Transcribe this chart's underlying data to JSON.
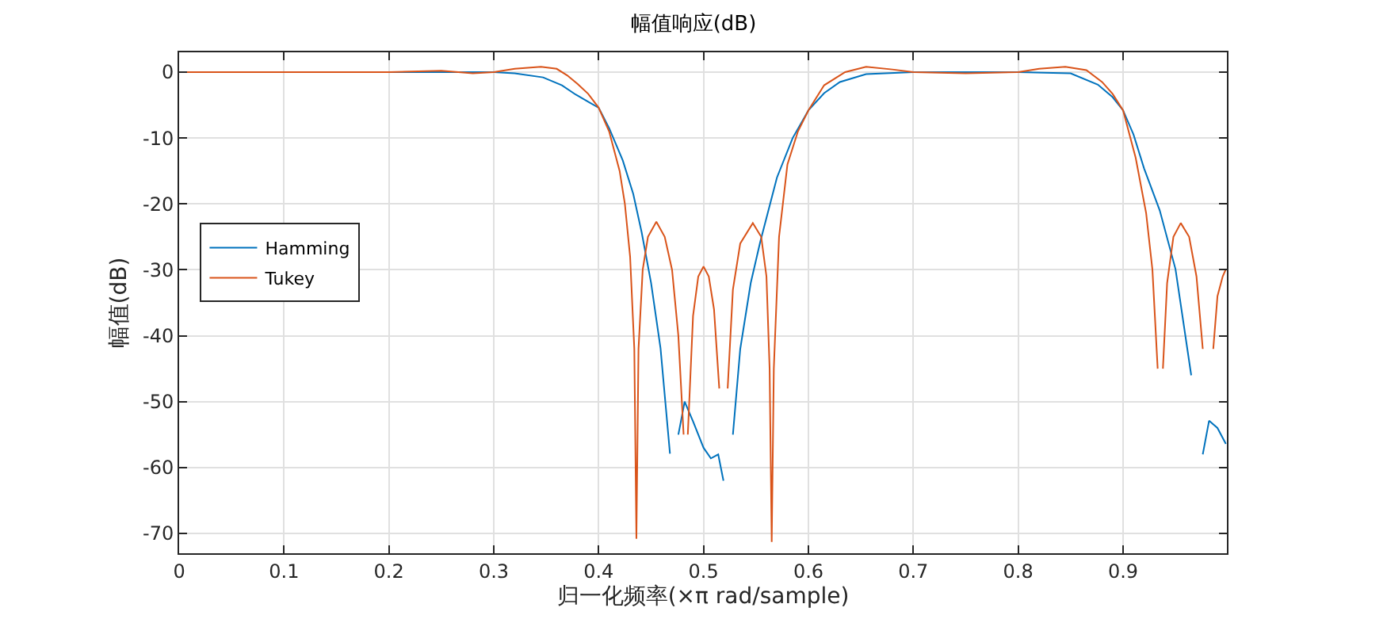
{
  "chart_data": {
    "type": "line",
    "title": "幅值响应(dB)",
    "xlabel": "归一化频率(×π rad/sample)",
    "ylabel": "幅值(dB)",
    "xlim": [
      0,
      0.999
    ],
    "xticks": [
      0,
      0.1,
      0.2,
      0.3,
      0.4,
      0.5,
      0.6,
      0.7,
      0.8,
      0.9
    ],
    "ylim": [
      -73,
      3
    ],
    "yticks": [
      -70,
      -60,
      -50,
      -40,
      -30,
      -20,
      -10,
      0
    ],
    "grid": true,
    "legend": "left",
    "marker": "none",
    "line_style": "solid",
    "series": [
      {
        "name": "Hamming",
        "color": "#0072bd",
        "x": [
          0,
          0.1,
          0.2,
          0.3,
          0.32,
          0.347,
          0.365,
          0.378,
          0.39,
          0.4,
          0.41,
          0.423,
          0.433,
          0.441,
          0.45,
          0.459,
          0.468,
          0.472,
          0.476,
          0.482,
          0.49,
          0.5,
          0.507,
          0.514,
          0.519,
          0.524,
          0.528,
          0.535,
          0.545,
          0.554,
          0.57,
          0.585,
          0.6,
          0.615,
          0.63,
          0.655,
          0.7,
          0.8,
          0.85,
          0.876,
          0.89,
          0.9,
          0.91,
          0.92,
          0.935,
          0.95,
          0.965,
          0.974,
          0.976,
          0.982,
          0.99,
          0.998
        ],
        "values": [
          0,
          0,
          0,
          0,
          -0.2,
          -0.8,
          -2,
          -3.4,
          -4.5,
          -5.4,
          -8.5,
          -13.4,
          -18.5,
          -24.3,
          -32,
          -41.9,
          -57.9,
          null,
          -55,
          -50,
          -53,
          -57,
          -58.6,
          -58,
          -62,
          null,
          -55,
          -42,
          -32,
          -25.8,
          -16,
          -10,
          -5.8,
          -3.2,
          -1.5,
          -0.3,
          0,
          0,
          -0.2,
          -1.9,
          -3.8,
          -5.8,
          -9.5,
          -14.6,
          -21,
          -29.9,
          -46,
          null,
          -58,
          -52.9,
          -54,
          -56.4
        ]
      },
      {
        "name": "Tukey",
        "color": "#d95319",
        "x": [
          0,
          0.1,
          0.2,
          0.25,
          0.28,
          0.3,
          0.32,
          0.345,
          0.36,
          0.37,
          0.38,
          0.39,
          0.4,
          0.41,
          0.42,
          0.425,
          0.43,
          0.434,
          0.436,
          0.438,
          0.442,
          0.447,
          0.455,
          0.463,
          0.47,
          0.476,
          0.481,
          0.483,
          0.485,
          0.49,
          0.495,
          0.5,
          0.505,
          0.51,
          0.515,
          0.519,
          0.523,
          0.528,
          0.535,
          0.547,
          0.555,
          0.56,
          0.563,
          0.565,
          0.567,
          0.572,
          0.58,
          0.59,
          0.6,
          0.615,
          0.635,
          0.655,
          0.68,
          0.7,
          0.75,
          0.8,
          0.82,
          0.845,
          0.865,
          0.88,
          0.89,
          0.9,
          0.912,
          0.922,
          0.928,
          0.933,
          0.9355,
          0.938,
          0.942,
          0.948,
          0.955,
          0.963,
          0.97,
          0.976,
          0.982,
          0.986,
          0.99,
          0.995,
          0.998
        ],
        "values": [
          0,
          0,
          0,
          0.2,
          -0.2,
          0,
          0.5,
          0.8,
          0.5,
          -0.5,
          -1.8,
          -3.3,
          -5.4,
          -9,
          -15,
          -20,
          -28,
          -42,
          -70.8,
          -42,
          -30,
          -25,
          -22.7,
          -25,
          -30,
          -40,
          -55,
          null,
          -55,
          -37,
          -31,
          -29.5,
          -31,
          -36,
          -48,
          null,
          -48,
          -33,
          -26,
          -22.9,
          -25,
          -31,
          -45,
          -71.3,
          -45,
          -25,
          -14,
          -9,
          -5.8,
          -2,
          0,
          0.8,
          0.4,
          0,
          -0.2,
          0,
          0.5,
          0.8,
          0.3,
          -1.5,
          -3.3,
          -5.8,
          -13,
          -21.4,
          -30,
          -45,
          null,
          -45,
          -32,
          -25,
          -22.9,
          -25,
          -31,
          -42,
          null,
          -42,
          -34,
          -31,
          -29.9
        ]
      }
    ]
  }
}
